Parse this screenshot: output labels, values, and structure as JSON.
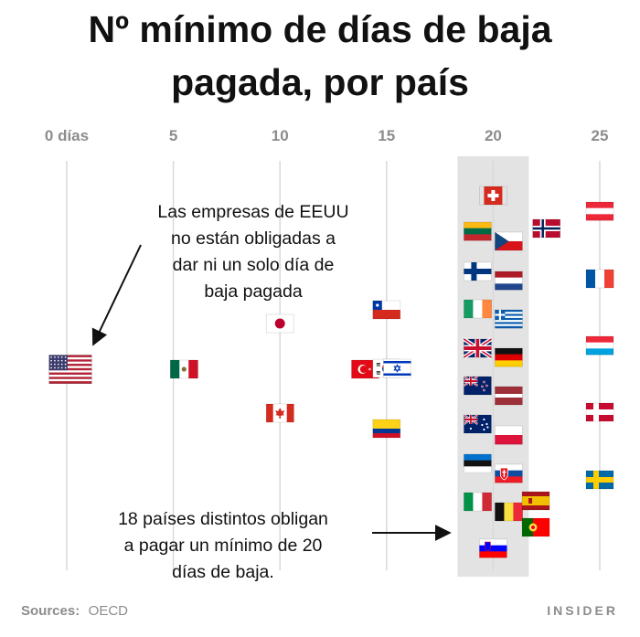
{
  "chart_data": {
    "type": "scatter",
    "title_lines": [
      "Nº mínimo de días de baja",
      "pagada, por país"
    ],
    "x_ticks": [
      {
        "value": 0,
        "label": "0 días"
      },
      {
        "value": 5,
        "label": "5"
      },
      {
        "value": 10,
        "label": "10"
      },
      {
        "value": 15,
        "label": "15"
      },
      {
        "value": 20,
        "label": "20"
      },
      {
        "value": 25,
        "label": "25"
      }
    ],
    "xlim": [
      0,
      25
    ],
    "grid": true,
    "highlight_band": {
      "value": 20,
      "fill": "#e3e3e3"
    },
    "points": [
      {
        "country": "Estados Unidos",
        "flag": "us-flag",
        "days": 0
      },
      {
        "country": "México",
        "flag": "mexico-flag",
        "days": 5.5
      },
      {
        "country": "Japón",
        "flag": "japan-flag",
        "days": 10
      },
      {
        "country": "Canadá",
        "flag": "canada-flag",
        "days": 10
      },
      {
        "country": "Turquía",
        "flag": "turkey-flag",
        "days": 14
      },
      {
        "country": "Corea del Sur",
        "flag": "south-korea-flag",
        "days": 15
      },
      {
        "country": "Israel",
        "flag": "israel-flag",
        "days": 15.5
      },
      {
        "country": "Chile",
        "flag": "chile-flag",
        "days": 15
      },
      {
        "country": "Colombia",
        "flag": "colombia-flag",
        "days": 15
      },
      {
        "country": "Suiza",
        "flag": "switzerland-flag",
        "days": 20
      },
      {
        "country": "Lituania",
        "flag": "lithuania-flag",
        "days": 20
      },
      {
        "country": "República Checa",
        "flag": "czech-flag",
        "days": 20
      },
      {
        "country": "Finlandia",
        "flag": "finland-flag",
        "days": 20
      },
      {
        "country": "Países Bajos",
        "flag": "netherlands-flag",
        "days": 20
      },
      {
        "country": "Irlanda",
        "flag": "ireland-flag",
        "days": 20
      },
      {
        "country": "Grecia",
        "flag": "greece-flag",
        "days": 20
      },
      {
        "country": "Reino Unido",
        "flag": "uk-flag",
        "days": 20
      },
      {
        "country": "Alemania",
        "flag": "germany-flag",
        "days": 20
      },
      {
        "country": "Nueva Zelanda",
        "flag": "new-zealand-flag",
        "days": 20
      },
      {
        "country": "Letonia",
        "flag": "latvia-flag",
        "days": 20
      },
      {
        "country": "Australia",
        "flag": "australia-flag",
        "days": 20
      },
      {
        "country": "Polonia",
        "flag": "poland-flag",
        "days": 20
      },
      {
        "country": "Estonia",
        "flag": "estonia-flag",
        "days": 20
      },
      {
        "country": "Eslovaquia",
        "flag": "slovakia-flag",
        "days": 20
      },
      {
        "country": "Italia",
        "flag": "italy-flag",
        "days": 20
      },
      {
        "country": "Bélgica",
        "flag": "belgium-flag",
        "days": 20
      },
      {
        "country": "Eslovenia",
        "flag": "slovenia-flag",
        "days": 20
      },
      {
        "country": "Noruega",
        "flag": "norway-flag",
        "days": 22.5
      },
      {
        "country": "España",
        "flag": "spain-flag",
        "days": 22
      },
      {
        "country": "Portugal",
        "flag": "portugal-flag",
        "days": 22
      },
      {
        "country": "Austria",
        "flag": "austria-flag",
        "days": 25
      },
      {
        "country": "Francia",
        "flag": "france-flag",
        "days": 25
      },
      {
        "country": "Luxemburgo",
        "flag": "luxembourg-flag",
        "days": 25
      },
      {
        "country": "Dinamarca",
        "flag": "denmark-flag",
        "days": 25
      },
      {
        "country": "Suecia",
        "flag": "sweden-flag",
        "days": 25
      }
    ],
    "annotations": [
      {
        "lines": [
          "Las empresas de EEUU",
          "no están obligadas a",
          "dar ni un solo día de",
          "baja pagada"
        ]
      },
      {
        "lines": [
          "18 países distintos obligan",
          "a pagar un mínimo de 20",
          "días de baja."
        ]
      }
    ]
  },
  "footer": {
    "source_label": "Sources:",
    "source_value": "OECD",
    "brand": "INSIDER"
  }
}
